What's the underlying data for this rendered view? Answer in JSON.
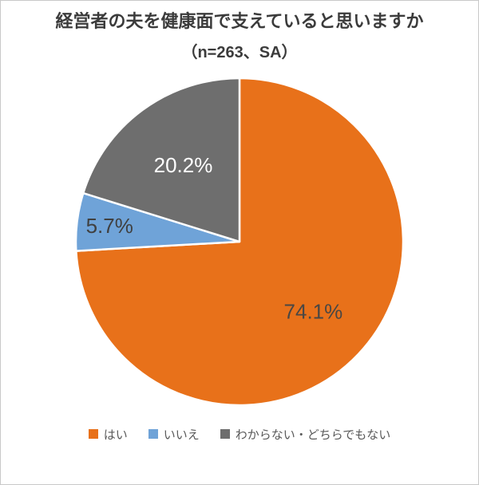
{
  "chart_data": {
    "type": "pie",
    "title": "経営者の夫を健康面で支えていると思いますか",
    "subtitle": "（n=263、SA）",
    "labels": [
      "はい",
      "いいえ",
      "わからない・どちらでもない"
    ],
    "values": [
      74.1,
      5.7,
      20.2
    ],
    "value_labels": [
      "74.1%",
      "5.7%",
      "20.2%"
    ],
    "colors": [
      "#e8711a",
      "#6fa3d8",
      "#6e6e6e"
    ],
    "label_colors": [
      "#4a4744",
      "#404040",
      "#ffffff"
    ],
    "label_radius_fractions": [
      0.62,
      0.8,
      0.58
    ],
    "start_angle_deg": 0,
    "direction": "clockwise",
    "slice_border_color": "#ffffff",
    "legend_position": "bottom",
    "legend_text_color": "#595959"
  }
}
